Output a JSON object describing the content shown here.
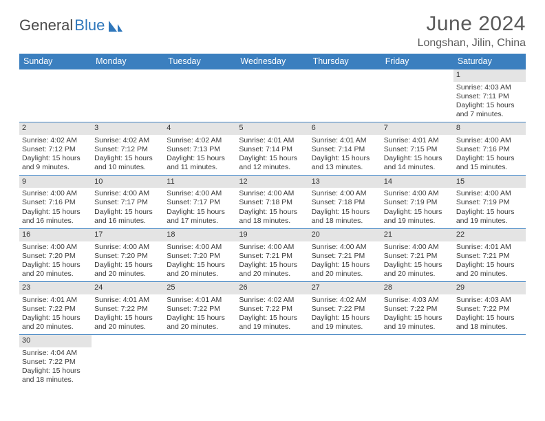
{
  "brand": {
    "name1": "General",
    "name2": "Blue"
  },
  "title": "June 2024",
  "location": "Longshan, Jilin, China",
  "colors": {
    "header_bg": "#3b7fbf",
    "header_text": "#ffffff",
    "date_bar_bg": "#e4e4e4",
    "row_divider": "#3b7fbf",
    "text": "#3a3a3a",
    "title_text": "#5a5a5a",
    "brand_accent": "#2f77bb"
  },
  "typography": {
    "title_fontsize": 30,
    "location_fontsize": 16,
    "dayheader_fontsize": 12.5,
    "cell_fontsize": 10.5,
    "date_fontsize": 11
  },
  "day_names": [
    "Sunday",
    "Monday",
    "Tuesday",
    "Wednesday",
    "Thursday",
    "Friday",
    "Saturday"
  ],
  "weeks": [
    [
      null,
      null,
      null,
      null,
      null,
      null,
      {
        "d": "1",
        "sr": "Sunrise: 4:03 AM",
        "ss": "Sunset: 7:11 PM",
        "dl1": "Daylight: 15 hours",
        "dl2": "and 7 minutes."
      }
    ],
    [
      {
        "d": "2",
        "sr": "Sunrise: 4:02 AM",
        "ss": "Sunset: 7:12 PM",
        "dl1": "Daylight: 15 hours",
        "dl2": "and 9 minutes."
      },
      {
        "d": "3",
        "sr": "Sunrise: 4:02 AM",
        "ss": "Sunset: 7:12 PM",
        "dl1": "Daylight: 15 hours",
        "dl2": "and 10 minutes."
      },
      {
        "d": "4",
        "sr": "Sunrise: 4:02 AM",
        "ss": "Sunset: 7:13 PM",
        "dl1": "Daylight: 15 hours",
        "dl2": "and 11 minutes."
      },
      {
        "d": "5",
        "sr": "Sunrise: 4:01 AM",
        "ss": "Sunset: 7:14 PM",
        "dl1": "Daylight: 15 hours",
        "dl2": "and 12 minutes."
      },
      {
        "d": "6",
        "sr": "Sunrise: 4:01 AM",
        "ss": "Sunset: 7:14 PM",
        "dl1": "Daylight: 15 hours",
        "dl2": "and 13 minutes."
      },
      {
        "d": "7",
        "sr": "Sunrise: 4:01 AM",
        "ss": "Sunset: 7:15 PM",
        "dl1": "Daylight: 15 hours",
        "dl2": "and 14 minutes."
      },
      {
        "d": "8",
        "sr": "Sunrise: 4:00 AM",
        "ss": "Sunset: 7:16 PM",
        "dl1": "Daylight: 15 hours",
        "dl2": "and 15 minutes."
      }
    ],
    [
      {
        "d": "9",
        "sr": "Sunrise: 4:00 AM",
        "ss": "Sunset: 7:16 PM",
        "dl1": "Daylight: 15 hours",
        "dl2": "and 16 minutes."
      },
      {
        "d": "10",
        "sr": "Sunrise: 4:00 AM",
        "ss": "Sunset: 7:17 PM",
        "dl1": "Daylight: 15 hours",
        "dl2": "and 16 minutes."
      },
      {
        "d": "11",
        "sr": "Sunrise: 4:00 AM",
        "ss": "Sunset: 7:17 PM",
        "dl1": "Daylight: 15 hours",
        "dl2": "and 17 minutes."
      },
      {
        "d": "12",
        "sr": "Sunrise: 4:00 AM",
        "ss": "Sunset: 7:18 PM",
        "dl1": "Daylight: 15 hours",
        "dl2": "and 18 minutes."
      },
      {
        "d": "13",
        "sr": "Sunrise: 4:00 AM",
        "ss": "Sunset: 7:18 PM",
        "dl1": "Daylight: 15 hours",
        "dl2": "and 18 minutes."
      },
      {
        "d": "14",
        "sr": "Sunrise: 4:00 AM",
        "ss": "Sunset: 7:19 PM",
        "dl1": "Daylight: 15 hours",
        "dl2": "and 19 minutes."
      },
      {
        "d": "15",
        "sr": "Sunrise: 4:00 AM",
        "ss": "Sunset: 7:19 PM",
        "dl1": "Daylight: 15 hours",
        "dl2": "and 19 minutes."
      }
    ],
    [
      {
        "d": "16",
        "sr": "Sunrise: 4:00 AM",
        "ss": "Sunset: 7:20 PM",
        "dl1": "Daylight: 15 hours",
        "dl2": "and 20 minutes."
      },
      {
        "d": "17",
        "sr": "Sunrise: 4:00 AM",
        "ss": "Sunset: 7:20 PM",
        "dl1": "Daylight: 15 hours",
        "dl2": "and 20 minutes."
      },
      {
        "d": "18",
        "sr": "Sunrise: 4:00 AM",
        "ss": "Sunset: 7:20 PM",
        "dl1": "Daylight: 15 hours",
        "dl2": "and 20 minutes."
      },
      {
        "d": "19",
        "sr": "Sunrise: 4:00 AM",
        "ss": "Sunset: 7:21 PM",
        "dl1": "Daylight: 15 hours",
        "dl2": "and 20 minutes."
      },
      {
        "d": "20",
        "sr": "Sunrise: 4:00 AM",
        "ss": "Sunset: 7:21 PM",
        "dl1": "Daylight: 15 hours",
        "dl2": "and 20 minutes."
      },
      {
        "d": "21",
        "sr": "Sunrise: 4:00 AM",
        "ss": "Sunset: 7:21 PM",
        "dl1": "Daylight: 15 hours",
        "dl2": "and 20 minutes."
      },
      {
        "d": "22",
        "sr": "Sunrise: 4:01 AM",
        "ss": "Sunset: 7:21 PM",
        "dl1": "Daylight: 15 hours",
        "dl2": "and 20 minutes."
      }
    ],
    [
      {
        "d": "23",
        "sr": "Sunrise: 4:01 AM",
        "ss": "Sunset: 7:22 PM",
        "dl1": "Daylight: 15 hours",
        "dl2": "and 20 minutes."
      },
      {
        "d": "24",
        "sr": "Sunrise: 4:01 AM",
        "ss": "Sunset: 7:22 PM",
        "dl1": "Daylight: 15 hours",
        "dl2": "and 20 minutes."
      },
      {
        "d": "25",
        "sr": "Sunrise: 4:01 AM",
        "ss": "Sunset: 7:22 PM",
        "dl1": "Daylight: 15 hours",
        "dl2": "and 20 minutes."
      },
      {
        "d": "26",
        "sr": "Sunrise: 4:02 AM",
        "ss": "Sunset: 7:22 PM",
        "dl1": "Daylight: 15 hours",
        "dl2": "and 19 minutes."
      },
      {
        "d": "27",
        "sr": "Sunrise: 4:02 AM",
        "ss": "Sunset: 7:22 PM",
        "dl1": "Daylight: 15 hours",
        "dl2": "and 19 minutes."
      },
      {
        "d": "28",
        "sr": "Sunrise: 4:03 AM",
        "ss": "Sunset: 7:22 PM",
        "dl1": "Daylight: 15 hours",
        "dl2": "and 19 minutes."
      },
      {
        "d": "29",
        "sr": "Sunrise: 4:03 AM",
        "ss": "Sunset: 7:22 PM",
        "dl1": "Daylight: 15 hours",
        "dl2": "and 18 minutes."
      }
    ],
    [
      {
        "d": "30",
        "sr": "Sunrise: 4:04 AM",
        "ss": "Sunset: 7:22 PM",
        "dl1": "Daylight: 15 hours",
        "dl2": "and 18 minutes."
      },
      null,
      null,
      null,
      null,
      null,
      null
    ]
  ]
}
